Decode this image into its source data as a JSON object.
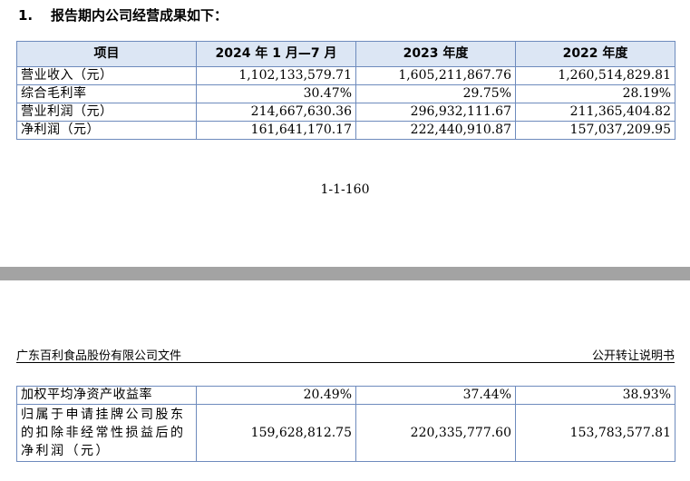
{
  "heading": {
    "number": "1.",
    "text": "报告期内公司经营成果如下："
  },
  "table1": {
    "headers": [
      "项目",
      "2024 年 1 月—7 月",
      "2023 年度",
      "2022 年度"
    ],
    "rows": [
      [
        "营业收入（元）",
        "1,102,133,579.71",
        "1,605,211,867.76",
        "1,260,514,829.81"
      ],
      [
        "综合毛利率",
        "30.47%",
        "29.75%",
        "28.19%"
      ],
      [
        "营业利润（元）",
        "214,667,630.36",
        "296,932,111.67",
        "211,365,404.82"
      ],
      [
        "净利润（元）",
        "161,641,170.17",
        "222,440,910.87",
        "157,037,209.95"
      ]
    ]
  },
  "page_number": "1-1-160",
  "doc_header": {
    "left": "广东百利食品股份有限公司文件",
    "right": "公开转让说明书"
  },
  "table2": {
    "rows": [
      [
        "加权平均净资产收益率",
        "20.49%",
        "37.44%",
        "38.93%"
      ],
      [
        "归属于申请挂牌公司股东的扣除非经常性损益后的净利润（元）",
        "159,628,812.75",
        "220,335,777.60",
        "153,783,577.81"
      ]
    ]
  }
}
